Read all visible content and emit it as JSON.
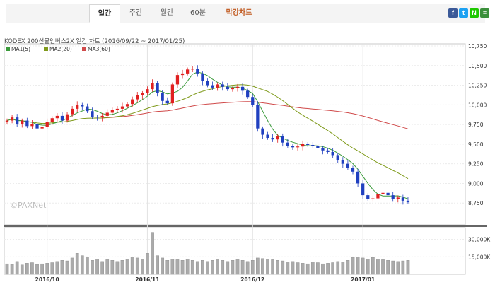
{
  "tabs": [
    {
      "label": "일간",
      "active": true
    },
    {
      "label": "주간",
      "active": false
    },
    {
      "label": "월간",
      "active": false
    },
    {
      "label": "60분",
      "active": false
    },
    {
      "label": "막강차트",
      "active": false,
      "accent": true
    }
  ],
  "share": [
    {
      "name": "facebook-icon",
      "glyph": "f",
      "color": "#3b5998"
    },
    {
      "name": "twitter-icon",
      "glyph": "t",
      "color": "#1da1f2"
    },
    {
      "name": "naver-icon",
      "glyph": "N",
      "color": "#1ec800"
    },
    {
      "name": "band-icon",
      "glyph": "≡",
      "color": "#3b8f3b"
    }
  ],
  "chart_data": {
    "type": "candlestick",
    "title": "KODEX 200선물인버스2X 일간 차트 (2016/09/22 ~ 2017/01/25)",
    "watermark": "©PAXNet",
    "legend": [
      {
        "name": "MA1(5)",
        "color": "#3a9a3a"
      },
      {
        "name": "MA2(20)",
        "color": "#7f9a1a"
      },
      {
        "name": "MA3(60)",
        "color": "#d04a4a"
      }
    ],
    "price_axis": {
      "min": 8500,
      "max": 10750,
      "ticks": [
        10750,
        10500,
        10250,
        10000,
        9750,
        9500,
        9250,
        9000,
        8750
      ],
      "tick_labels": [
        "10,750",
        "10,500",
        "10,250",
        "10,000",
        "9,750",
        "9,500",
        "9,250",
        "9,000",
        "8,750"
      ]
    },
    "volume_axis": {
      "max": 40000,
      "ticks": [
        30000,
        15000
      ],
      "tick_labels": [
        "30,000K",
        "15,000K"
      ]
    },
    "x_labels": [
      {
        "label": "2016/10",
        "index": 8
      },
      {
        "label": "2016/11",
        "index": 28
      },
      {
        "label": "2016/12",
        "index": 49
      },
      {
        "label": "2017/01",
        "index": 71
      }
    ],
    "closes": [
      9800,
      9840,
      9760,
      9800,
      9730,
      9760,
      9700,
      9720,
      9780,
      9830,
      9860,
      9800,
      9880,
      9950,
      10000,
      9980,
      9920,
      9850,
      9840,
      9860,
      9900,
      9940,
      9950,
      9980,
      10010,
      10070,
      10120,
      10150,
      10200,
      10280,
      10150,
      10050,
      10020,
      10260,
      10380,
      10400,
      10450,
      10460,
      10400,
      10300,
      10250,
      10220,
      10260,
      10230,
      10200,
      10210,
      10230,
      10180,
      10100,
      10000,
      9700,
      9620,
      9580,
      9560,
      9600,
      9520,
      9480,
      9460,
      9470,
      9500,
      9490,
      9480,
      9450,
      9420,
      9400,
      9360,
      9300,
      9250,
      9200,
      9150,
      9000,
      8850,
      8800,
      8810,
      8860,
      8880,
      8850,
      8800,
      8820,
      8780,
      8760
    ],
    "ma60_from": 18,
    "volumes": [
      9000,
      8500,
      11000,
      8000,
      9500,
      10000,
      8500,
      9000,
      9500,
      10000,
      11000,
      12000,
      11500,
      14000,
      18000,
      16000,
      15000,
      12000,
      13000,
      11000,
      12500,
      12000,
      11000,
      12000,
      13000,
      15000,
      14000,
      13000,
      18000,
      36000,
      16000,
      14000,
      12000,
      13000,
      12500,
      12000,
      13000,
      12000,
      11000,
      12000,
      11000,
      12000,
      13000,
      12000,
      11000,
      12000,
      12500,
      12000,
      11000,
      12000,
      14000,
      13500,
      13000,
      12500,
      12000,
      11500,
      10500,
      11000,
      10000,
      9500,
      9000,
      10500,
      10000,
      9000,
      9500,
      10000,
      11000,
      10500,
      12000,
      14500,
      15000,
      14000,
      13000,
      14500,
      13000,
      12500,
      12000,
      11500,
      11000,
      11500,
      12000
    ]
  }
}
